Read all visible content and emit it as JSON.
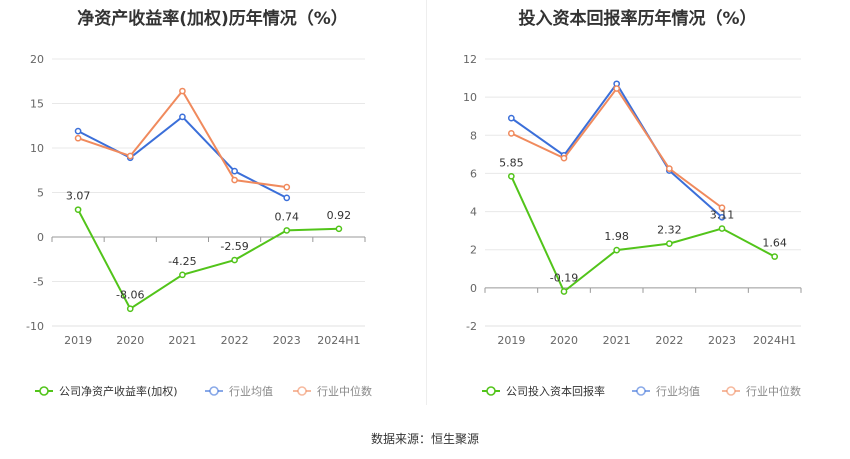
{
  "footer": {
    "source_label": "数据来源：",
    "source_value": "恒生聚源"
  },
  "chart_data": [
    {
      "type": "line",
      "title": "净资产收益率(加权)历年情况（%）",
      "x": [
        "2019",
        "2020",
        "2021",
        "2022",
        "2023",
        "2024H1"
      ],
      "ylim": [
        -10,
        20
      ],
      "yticks": [
        -10,
        -5,
        0,
        5,
        10,
        15,
        20
      ],
      "grid": true,
      "legend_position": "bottom",
      "series": [
        {
          "name": "公司净资产收益率(加权)",
          "color": "#52c41a",
          "values": [
            3.07,
            -8.06,
            -4.25,
            -2.59,
            0.74,
            0.92
          ],
          "labels": [
            "3.07",
            "-8.06",
            "-4.25",
            "-2.59",
            "0.74",
            "0.92"
          ]
        },
        {
          "name": "行业均值",
          "color": "#3b6fd9",
          "values": [
            11.9,
            8.9,
            13.5,
            7.4,
            4.4,
            null
          ]
        },
        {
          "name": "行业中位数",
          "color": "#f08a5d",
          "values": [
            11.1,
            9.1,
            16.4,
            6.4,
            5.6,
            null
          ]
        }
      ]
    },
    {
      "type": "line",
      "title": "投入资本回报率历年情况（%）",
      "x": [
        "2019",
        "2020",
        "2021",
        "2022",
        "2023",
        "2024H1"
      ],
      "ylim": [
        -2,
        12
      ],
      "yticks": [
        -2,
        0,
        2,
        4,
        6,
        8,
        10,
        12
      ],
      "grid": true,
      "legend_position": "bottom",
      "series": [
        {
          "name": "公司投入资本回报率",
          "color": "#52c41a",
          "values": [
            5.85,
            -0.19,
            1.98,
            2.32,
            3.11,
            1.64
          ],
          "labels": [
            "5.85",
            "-0.19",
            "1.98",
            "2.32",
            "3.11",
            "1.64"
          ]
        },
        {
          "name": "行业均值",
          "color": "#3b6fd9",
          "values": [
            8.9,
            6.95,
            10.7,
            6.15,
            3.7,
            null
          ]
        },
        {
          "name": "行业中位数",
          "color": "#f08a5d",
          "values": [
            8.1,
            6.8,
            10.45,
            6.25,
            4.2,
            null
          ]
        }
      ]
    }
  ]
}
